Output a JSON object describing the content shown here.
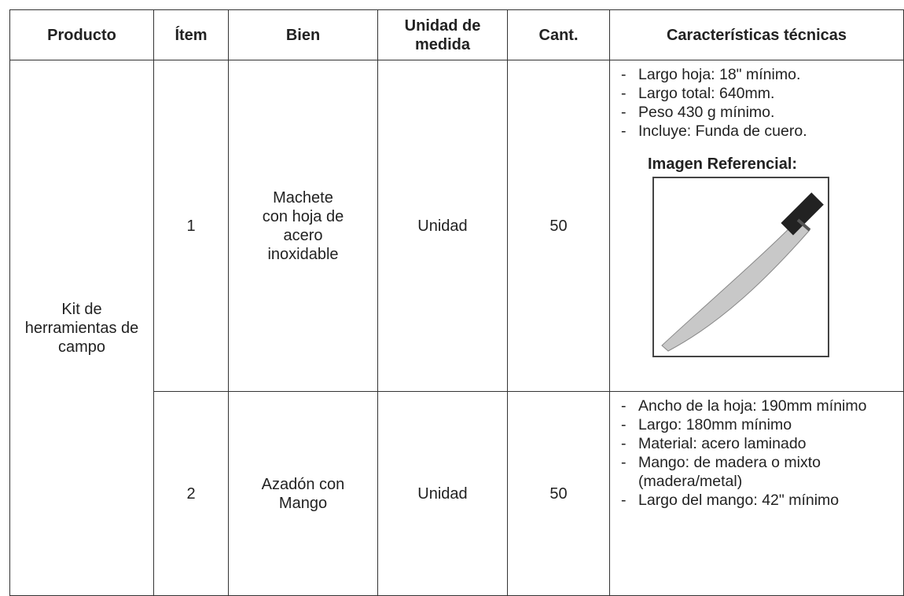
{
  "table": {
    "header": [
      "Producto",
      "Ítem",
      "Bien",
      "Unidad de medida",
      "Cant.",
      "Características técnicas"
    ],
    "product": "Kit de herramientas de campo",
    "rows": [
      {
        "item": 1,
        "bien": [
          "Machete",
          "con hoja de",
          "acero",
          "inoxidable"
        ],
        "unidad": "Unidad",
        "cant": 50,
        "specs": [
          "Largo hoja: 18\" mínimo.",
          "Largo total: 640mm.",
          "Peso 430 g mínimo.",
          "Incluye: Funda de cuero."
        ],
        "image_label": "Imagen Referencial:"
      },
      {
        "item": 2,
        "bien": [
          "Azadón con",
          "Mango"
        ],
        "unidad": "Unidad",
        "cant": 50,
        "specs": [
          "Ancho de la hoja: 190mm mínimo",
          "Largo: 180mm mínimo",
          "Material: acero laminado",
          "Mango: de madera o mixto (madera/metal)",
          "Largo del mango: 42\" mínimo"
        ]
      }
    ]
  }
}
